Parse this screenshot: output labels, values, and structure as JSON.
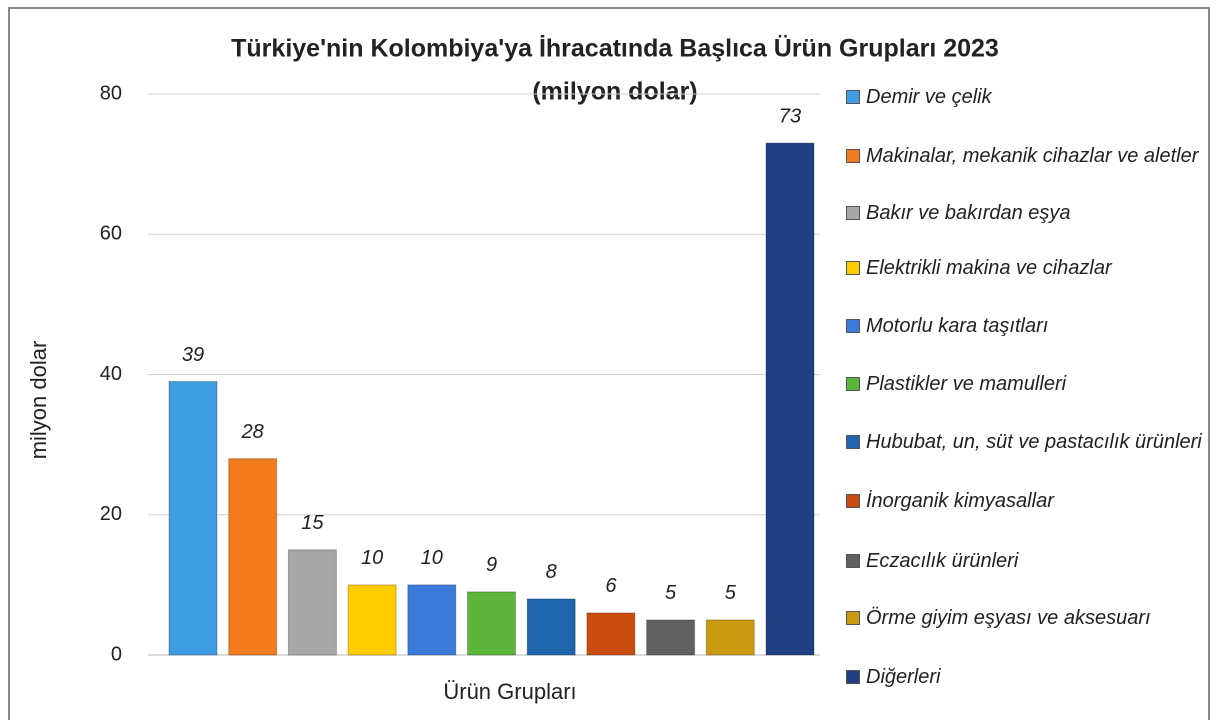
{
  "chart_data": {
    "type": "bar",
    "title": "Türkiye'nin Kolombiya'ya İhracatında Başlıca Ürün Grupları 2023",
    "subtitle": "(milyon dolar)",
    "y_label": "milyon dolar",
    "x_label": "Ürün Grupları",
    "categories": [
      "Demir ve çelik",
      "Makinalar, mekanik cihazlar ve aletler",
      "Bakır ve bakırdan eşya",
      "Elektrikli makina ve cihazlar",
      "Motorlu kara taşıtları",
      "Plastikler ve mamulleri",
      "Hububat, un, süt ve pastacılık ürünleri",
      "İnorganik kimyasallar",
      "Eczacılık ürünleri",
      "Örme giyim eşyası ve aksesuarı",
      "Diğerleri"
    ],
    "values": [
      39,
      28,
      15,
      10,
      10,
      9,
      8,
      6,
      5,
      5,
      73
    ],
    "colors": [
      "#3d9de0",
      "#f27b1c",
      "#a8a8a8",
      "#ffcc00",
      "#3b7bdc",
      "#5cb43a",
      "#1f66ad",
      "#c94b10",
      "#606060",
      "#c99a10",
      "#1f3f82"
    ],
    "ylim": [
      0,
      80
    ],
    "yticks": [
      0,
      20,
      40,
      60,
      80
    ],
    "grid": true,
    "legend": "right"
  }
}
